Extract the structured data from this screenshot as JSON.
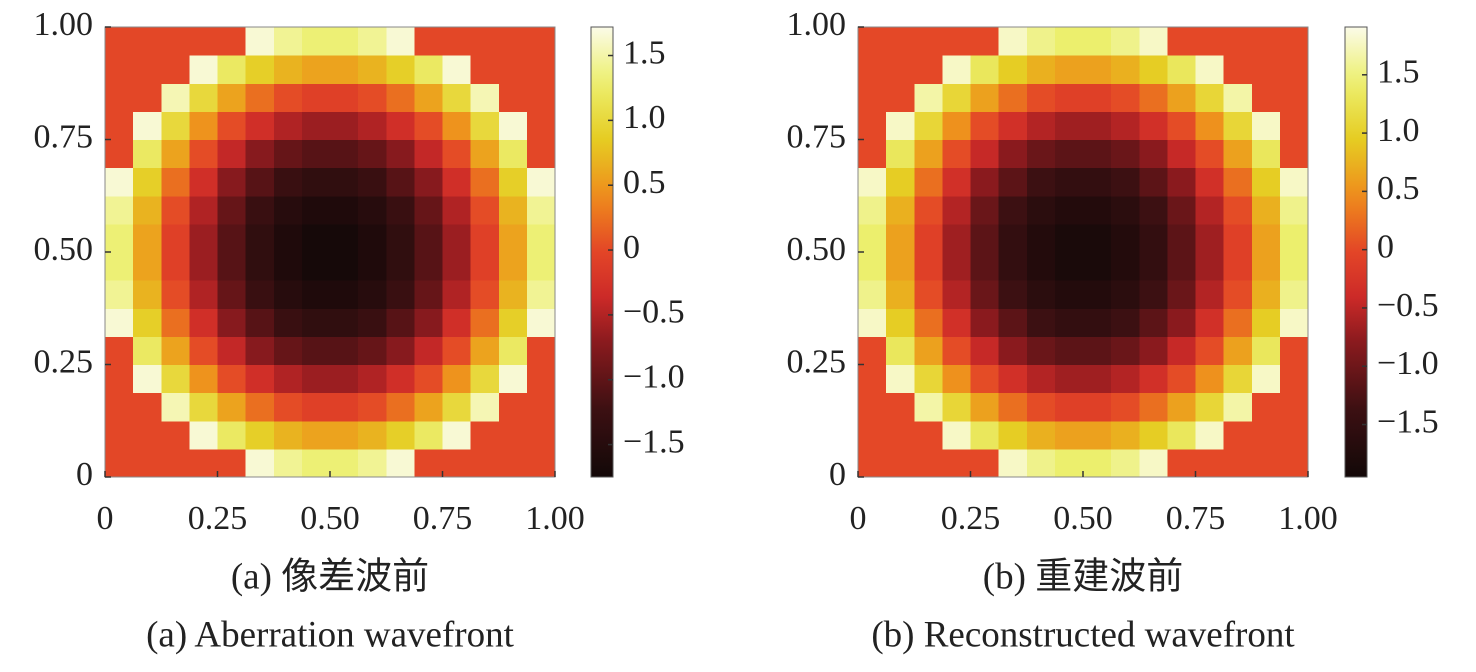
{
  "chart_data": [
    {
      "type": "heatmap",
      "title": "(a) 像差波前",
      "subtitle": "(a) Aberration wavefront",
      "xlim": [
        0,
        1
      ],
      "ylim": [
        0,
        1
      ],
      "xticks": [
        0,
        0.25,
        {
          "value": 0.5,
          "label": "0.50"
        },
        0.75,
        {
          "value": 1,
          "label": "1.00"
        }
      ],
      "yticks": [
        0,
        0.25,
        {
          "value": 0.5,
          "label": "0.50"
        },
        0.75,
        {
          "value": 1,
          "label": "1.00"
        }
      ],
      "clim": [
        -1.75,
        1.72
      ],
      "cticks": [
        {
          "value": -1.5,
          "label": "−1.5"
        },
        {
          "value": -1,
          "label": "−1.0"
        },
        {
          "value": -0.5,
          "label": "−0.5"
        },
        0,
        0.5,
        {
          "value": 1,
          "label": "1.0"
        },
        1.5
      ],
      "z": [
        [
          0,
          0,
          0,
          0,
          0,
          1.65,
          1.43,
          1.32,
          1.32,
          1.43,
          1.65,
          0,
          0,
          0,
          0,
          0
        ],
        [
          0,
          0,
          0,
          1.65,
          1.22,
          0.89,
          0.68,
          0.57,
          0.57,
          0.68,
          0.89,
          1.22,
          1.65,
          0,
          0,
          0
        ],
        [
          0,
          0,
          1.54,
          1.0,
          0.57,
          0.24,
          0.03,
          -0.08,
          -0.08,
          0.03,
          0.24,
          0.57,
          1.0,
          1.54,
          0,
          0
        ],
        [
          0,
          1.65,
          1.0,
          0.46,
          0.03,
          -0.3,
          -0.51,
          -0.62,
          -0.62,
          -0.51,
          -0.3,
          0.03,
          0.46,
          1.0,
          1.65,
          0
        ],
        [
          0,
          1.22,
          0.57,
          0.03,
          -0.41,
          -0.73,
          -0.95,
          -1.05,
          -1.05,
          -0.95,
          -0.73,
          -0.41,
          0.03,
          0.57,
          1.22,
          0
        ],
        [
          1.65,
          0.89,
          0.24,
          -0.3,
          -0.73,
          -1.05,
          -1.27,
          -1.38,
          -1.38,
          -1.27,
          -1.05,
          -0.73,
          -0.3,
          0.24,
          0.89,
          1.65
        ],
        [
          1.43,
          0.68,
          0.03,
          -0.51,
          -0.95,
          -1.27,
          -1.49,
          -1.59,
          -1.59,
          -1.49,
          -1.27,
          -0.95,
          -0.51,
          0.03,
          0.68,
          1.43
        ],
        [
          1.32,
          0.57,
          -0.08,
          -0.62,
          -1.05,
          -1.38,
          -1.59,
          -1.7,
          -1.7,
          -1.59,
          -1.38,
          -1.05,
          -0.62,
          -0.08,
          0.57,
          1.32
        ],
        [
          1.32,
          0.57,
          -0.08,
          -0.62,
          -1.05,
          -1.38,
          -1.59,
          -1.7,
          -1.7,
          -1.59,
          -1.38,
          -1.05,
          -0.62,
          -0.08,
          0.57,
          1.32
        ],
        [
          1.43,
          0.68,
          0.03,
          -0.51,
          -0.95,
          -1.27,
          -1.49,
          -1.59,
          -1.59,
          -1.49,
          -1.27,
          -0.95,
          -0.51,
          0.03,
          0.68,
          1.43
        ],
        [
          1.65,
          0.89,
          0.24,
          -0.3,
          -0.73,
          -1.05,
          -1.27,
          -1.38,
          -1.38,
          -1.27,
          -1.05,
          -0.73,
          -0.3,
          0.24,
          0.89,
          1.65
        ],
        [
          0,
          1.22,
          0.57,
          0.03,
          -0.41,
          -0.73,
          -0.95,
          -1.05,
          -1.05,
          -0.95,
          -0.73,
          -0.41,
          0.03,
          0.57,
          1.22,
          0
        ],
        [
          0,
          1.65,
          1.0,
          0.46,
          0.03,
          -0.3,
          -0.51,
          -0.62,
          -0.62,
          -0.51,
          -0.3,
          0.03,
          0.46,
          1.0,
          1.65,
          0
        ],
        [
          0,
          0,
          1.54,
          1.0,
          0.57,
          0.24,
          0.03,
          -0.08,
          -0.08,
          0.03,
          0.24,
          0.57,
          1.0,
          1.54,
          0,
          0
        ],
        [
          0,
          0,
          0,
          1.65,
          1.22,
          0.89,
          0.68,
          0.57,
          0.57,
          0.68,
          0.89,
          1.22,
          1.65,
          0,
          0,
          0
        ],
        [
          0,
          0,
          0,
          0,
          0,
          1.65,
          1.43,
          1.32,
          1.32,
          1.43,
          1.65,
          0,
          0,
          0,
          0,
          0
        ]
      ]
    },
    {
      "type": "heatmap",
      "title": "(b) 重建波前",
      "subtitle": "(b) Reconstructed wavefront",
      "xlim": [
        0,
        1
      ],
      "ylim": [
        0,
        1
      ],
      "xticks": [
        0,
        0.25,
        {
          "value": 0.5,
          "label": "0.50"
        },
        0.75,
        {
          "value": 1,
          "label": "1.00"
        }
      ],
      "yticks": [
        0,
        0.25,
        {
          "value": 0.5,
          "label": "0.50"
        },
        0.75,
        {
          "value": 1,
          "label": "1.00"
        }
      ],
      "clim": [
        -1.95,
        1.91
      ],
      "cticks": [
        {
          "value": -1.5,
          "label": "−1.5"
        },
        {
          "value": -1,
          "label": "−1.0"
        },
        {
          "value": -0.5,
          "label": "−0.5"
        },
        0,
        0.5,
        {
          "value": 1,
          "label": "1.0"
        },
        1.5
      ],
      "z": [
        [
          0,
          0,
          0,
          0,
          0,
          1.78,
          1.55,
          1.43,
          1.43,
          1.55,
          1.78,
          0,
          0,
          0,
          0,
          0
        ],
        [
          0,
          0,
          0,
          1.78,
          1.32,
          0.96,
          0.73,
          0.62,
          0.62,
          0.73,
          0.96,
          1.32,
          1.78,
          0,
          0,
          0
        ],
        [
          0,
          0,
          1.66,
          1.08,
          0.62,
          0.26,
          0.03,
          -0.09,
          -0.09,
          0.03,
          0.26,
          0.62,
          1.08,
          1.66,
          0,
          0
        ],
        [
          0,
          1.78,
          1.08,
          0.5,
          0.03,
          -0.32,
          -0.55,
          -0.67,
          -0.67,
          -0.55,
          -0.32,
          0.03,
          0.5,
          1.08,
          1.78,
          0
        ],
        [
          0,
          1.32,
          0.62,
          0.03,
          -0.44,
          -0.79,
          -1.03,
          -1.13,
          -1.13,
          -1.03,
          -0.79,
          -0.44,
          0.03,
          0.62,
          1.32,
          0
        ],
        [
          1.78,
          0.96,
          0.26,
          -0.32,
          -0.79,
          -1.13,
          -1.37,
          -1.49,
          -1.49,
          -1.37,
          -1.13,
          -0.79,
          -0.32,
          0.26,
          0.96,
          1.78
        ],
        [
          1.55,
          0.73,
          0.03,
          -0.55,
          -1.03,
          -1.37,
          -1.61,
          -1.72,
          -1.72,
          -1.61,
          -1.37,
          -1.03,
          -0.55,
          0.03,
          0.73,
          1.55
        ],
        [
          1.43,
          0.62,
          -0.09,
          -0.67,
          -1.13,
          -1.49,
          -1.72,
          -1.84,
          -1.84,
          -1.72,
          -1.49,
          -1.13,
          -0.67,
          -0.09,
          0.62,
          1.43
        ],
        [
          1.43,
          0.62,
          -0.09,
          -0.67,
          -1.13,
          -1.49,
          -1.72,
          -1.84,
          -1.84,
          -1.72,
          -1.49,
          -1.13,
          -0.67,
          -0.09,
          0.62,
          1.43
        ],
        [
          1.55,
          0.73,
          0.03,
          -0.55,
          -1.03,
          -1.37,
          -1.61,
          -1.72,
          -1.72,
          -1.61,
          -1.37,
          -1.03,
          -0.55,
          0.03,
          0.73,
          1.55
        ],
        [
          1.78,
          0.96,
          0.26,
          -0.32,
          -0.79,
          -1.13,
          -1.37,
          -1.49,
          -1.49,
          -1.37,
          -1.13,
          -0.79,
          -0.32,
          0.26,
          0.96,
          1.78
        ],
        [
          0,
          1.32,
          0.62,
          0.03,
          -0.44,
          -0.79,
          -1.03,
          -1.13,
          -1.13,
          -1.03,
          -0.79,
          -0.44,
          0.03,
          0.62,
          1.32,
          0
        ],
        [
          0,
          1.78,
          1.08,
          0.5,
          0.03,
          -0.32,
          -0.55,
          -0.67,
          -0.67,
          -0.55,
          -0.32,
          0.03,
          0.5,
          1.08,
          1.78,
          0
        ],
        [
          0,
          0,
          1.66,
          1.08,
          0.62,
          0.26,
          0.03,
          -0.09,
          -0.09,
          0.03,
          0.26,
          0.62,
          1.08,
          1.66,
          0,
          0
        ],
        [
          0,
          0,
          0,
          1.78,
          1.32,
          0.96,
          0.73,
          0.62,
          0.62,
          0.73,
          0.96,
          1.32,
          1.78,
          0,
          0,
          0
        ],
        [
          0,
          0,
          0,
          0,
          0,
          1.78,
          1.55,
          1.43,
          1.43,
          1.55,
          1.78,
          0,
          0,
          0,
          0,
          0
        ]
      ]
    }
  ]
}
